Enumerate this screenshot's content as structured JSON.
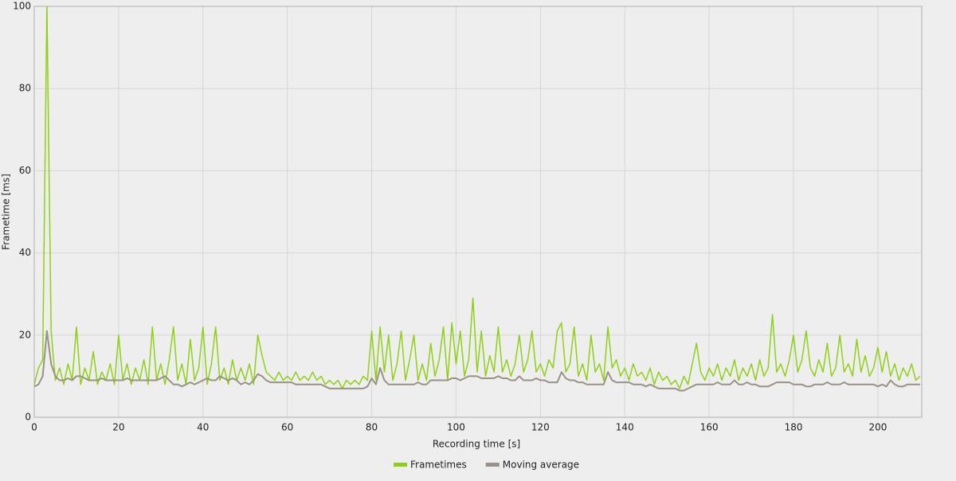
{
  "chart_data": {
    "type": "line",
    "xlabel": "Recording time [s]",
    "ylabel": "Frametime [ms]",
    "xlim": [
      0,
      210.4
    ],
    "ylim": [
      0,
      100
    ],
    "xticks": [
      0,
      20,
      40,
      60,
      80,
      100,
      120,
      140,
      160,
      180,
      200
    ],
    "yticks": [
      0,
      20,
      40,
      60,
      80,
      100
    ],
    "grid": true,
    "legend": "bottom",
    "x": [
      0,
      1,
      2,
      3,
      4,
      5,
      6,
      7,
      8,
      9,
      10,
      11,
      12,
      13,
      14,
      15,
      16,
      17,
      18,
      19,
      20,
      21,
      22,
      23,
      24,
      25,
      26,
      27,
      28,
      29,
      30,
      31,
      32,
      33,
      34,
      35,
      36,
      37,
      38,
      39,
      40,
      41,
      42,
      43,
      44,
      45,
      46,
      47,
      48,
      49,
      50,
      51,
      52,
      53,
      54,
      55,
      56,
      57,
      58,
      59,
      60,
      61,
      62,
      63,
      64,
      65,
      66,
      67,
      68,
      69,
      70,
      71,
      72,
      73,
      74,
      75,
      76,
      77,
      78,
      79,
      80,
      81,
      82,
      83,
      84,
      85,
      86,
      87,
      88,
      89,
      90,
      91,
      92,
      93,
      94,
      95,
      96,
      97,
      98,
      99,
      100,
      101,
      102,
      103,
      104,
      105,
      106,
      107,
      108,
      109,
      110,
      111,
      112,
      113,
      114,
      115,
      116,
      117,
      118,
      119,
      120,
      121,
      122,
      123,
      124,
      125,
      126,
      127,
      128,
      129,
      130,
      131,
      132,
      133,
      134,
      135,
      136,
      137,
      138,
      139,
      140,
      141,
      142,
      143,
      144,
      145,
      146,
      147,
      148,
      149,
      150,
      151,
      152,
      153,
      154,
      155,
      156,
      157,
      158,
      159,
      160,
      161,
      162,
      163,
      164,
      165,
      166,
      167,
      168,
      169,
      170,
      171,
      172,
      173,
      174,
      175,
      176,
      177,
      178,
      179,
      180,
      181,
      182,
      183,
      184,
      185,
      186,
      187,
      188,
      189,
      190,
      191,
      192,
      193,
      194,
      195,
      196,
      197,
      198,
      199,
      200,
      201,
      202,
      203,
      204,
      205,
      206,
      207,
      208,
      209,
      210
    ],
    "series": [
      {
        "name": "Frametimes",
        "color": "#8fd016",
        "width": 1.5,
        "values": [
          8,
          12,
          14,
          100,
          21,
          9,
          12,
          8,
          13,
          9,
          22,
          8,
          12,
          9,
          16,
          8,
          11,
          9,
          13,
          8,
          20,
          9,
          13,
          8,
          12,
          9,
          14,
          8,
          22,
          9,
          13,
          8,
          14,
          22,
          9,
          13,
          8,
          19,
          9,
          12,
          22,
          8,
          13,
          22,
          9,
          12,
          8,
          14,
          9,
          12,
          9,
          13,
          8,
          20,
          15,
          11,
          10,
          9,
          11,
          9,
          10,
          9,
          11,
          9,
          10,
          9,
          11,
          9,
          10,
          8,
          9,
          8,
          9,
          7,
          9,
          8,
          9,
          8,
          10,
          9,
          21,
          9,
          22,
          11,
          20,
          9,
          13,
          21,
          9,
          14,
          20,
          9,
          13,
          9,
          18,
          10,
          14,
          22,
          9,
          23,
          13,
          21,
          10,
          14,
          29,
          11,
          21,
          10,
          15,
          11,
          22,
          11,
          14,
          10,
          13,
          20,
          11,
          14,
          21,
          11,
          13,
          10,
          14,
          12,
          21,
          23,
          11,
          13,
          22,
          10,
          13,
          9,
          20,
          11,
          13,
          9,
          22,
          12,
          14,
          10,
          12,
          9,
          13,
          10,
          11,
          9,
          12,
          8,
          11,
          9,
          10,
          8,
          9,
          7,
          10,
          8,
          13,
          18,
          11,
          9,
          12,
          10,
          13,
          9,
          12,
          10,
          14,
          9,
          12,
          10,
          13,
          9,
          14,
          10,
          12,
          25,
          11,
          13,
          10,
          14,
          20,
          11,
          14,
          21,
          12,
          10,
          14,
          11,
          18,
          10,
          12,
          20,
          11,
          13,
          10,
          19,
          11,
          15,
          10,
          12,
          17,
          11,
          16,
          10,
          13,
          9,
          12,
          10,
          13,
          9,
          10
        ]
      },
      {
        "name": "Moving average",
        "color": "#9a9282",
        "width": 2,
        "values": [
          7.5,
          8,
          10,
          21,
          13,
          10,
          9,
          9,
          9.5,
          9,
          10,
          10,
          9.5,
          9,
          9,
          9,
          9.5,
          9,
          9,
          9,
          9,
          9,
          9.5,
          9,
          9,
          9,
          9,
          9,
          9,
          9,
          9.5,
          10,
          9,
          8,
          8,
          7.5,
          8,
          8.5,
          8,
          8.5,
          9,
          9.5,
          9,
          9,
          10,
          9.5,
          9,
          9.5,
          9,
          8,
          8.5,
          8,
          9,
          10.5,
          10,
          9,
          8.5,
          8.5,
          8.5,
          8.5,
          8.5,
          8.5,
          8,
          8,
          8,
          8,
          8,
          8,
          8,
          7.5,
          7,
          7,
          7,
          7,
          7,
          7,
          7,
          7,
          7,
          7.5,
          9.5,
          8,
          12,
          9,
          8,
          8,
          8,
          8,
          8,
          8,
          8,
          8.5,
          8,
          8,
          9,
          9,
          9,
          9,
          9,
          9.5,
          9.5,
          9,
          9.5,
          10,
          10,
          10,
          9.5,
          9.5,
          9.5,
          9.5,
          10,
          9.5,
          9.5,
          9,
          9,
          10,
          9,
          9,
          9,
          9.5,
          9,
          9,
          8.5,
          8.5,
          8.5,
          11,
          9.5,
          9,
          9,
          8.5,
          8.5,
          8,
          8,
          8,
          8,
          8,
          11,
          9,
          8.5,
          8.5,
          8.5,
          8.5,
          8,
          8,
          8,
          7.5,
          8,
          7.5,
          7,
          7,
          7,
          7,
          7,
          6.5,
          6.5,
          7,
          7.5,
          8,
          8,
          8,
          8,
          8,
          8.5,
          8,
          8,
          8,
          9,
          8,
          8,
          8.5,
          8,
          8,
          7.5,
          7.5,
          7.5,
          8,
          8.5,
          8.5,
          8.5,
          8.5,
          8,
          8,
          8,
          7.5,
          7.5,
          8,
          8,
          8,
          8.5,
          8,
          8,
          8,
          8.5,
          8,
          8,
          8,
          8,
          8,
          8,
          8,
          7.5,
          8,
          7.5,
          9,
          8,
          7.5,
          7.5,
          8,
          8,
          8,
          8
        ]
      }
    ]
  }
}
